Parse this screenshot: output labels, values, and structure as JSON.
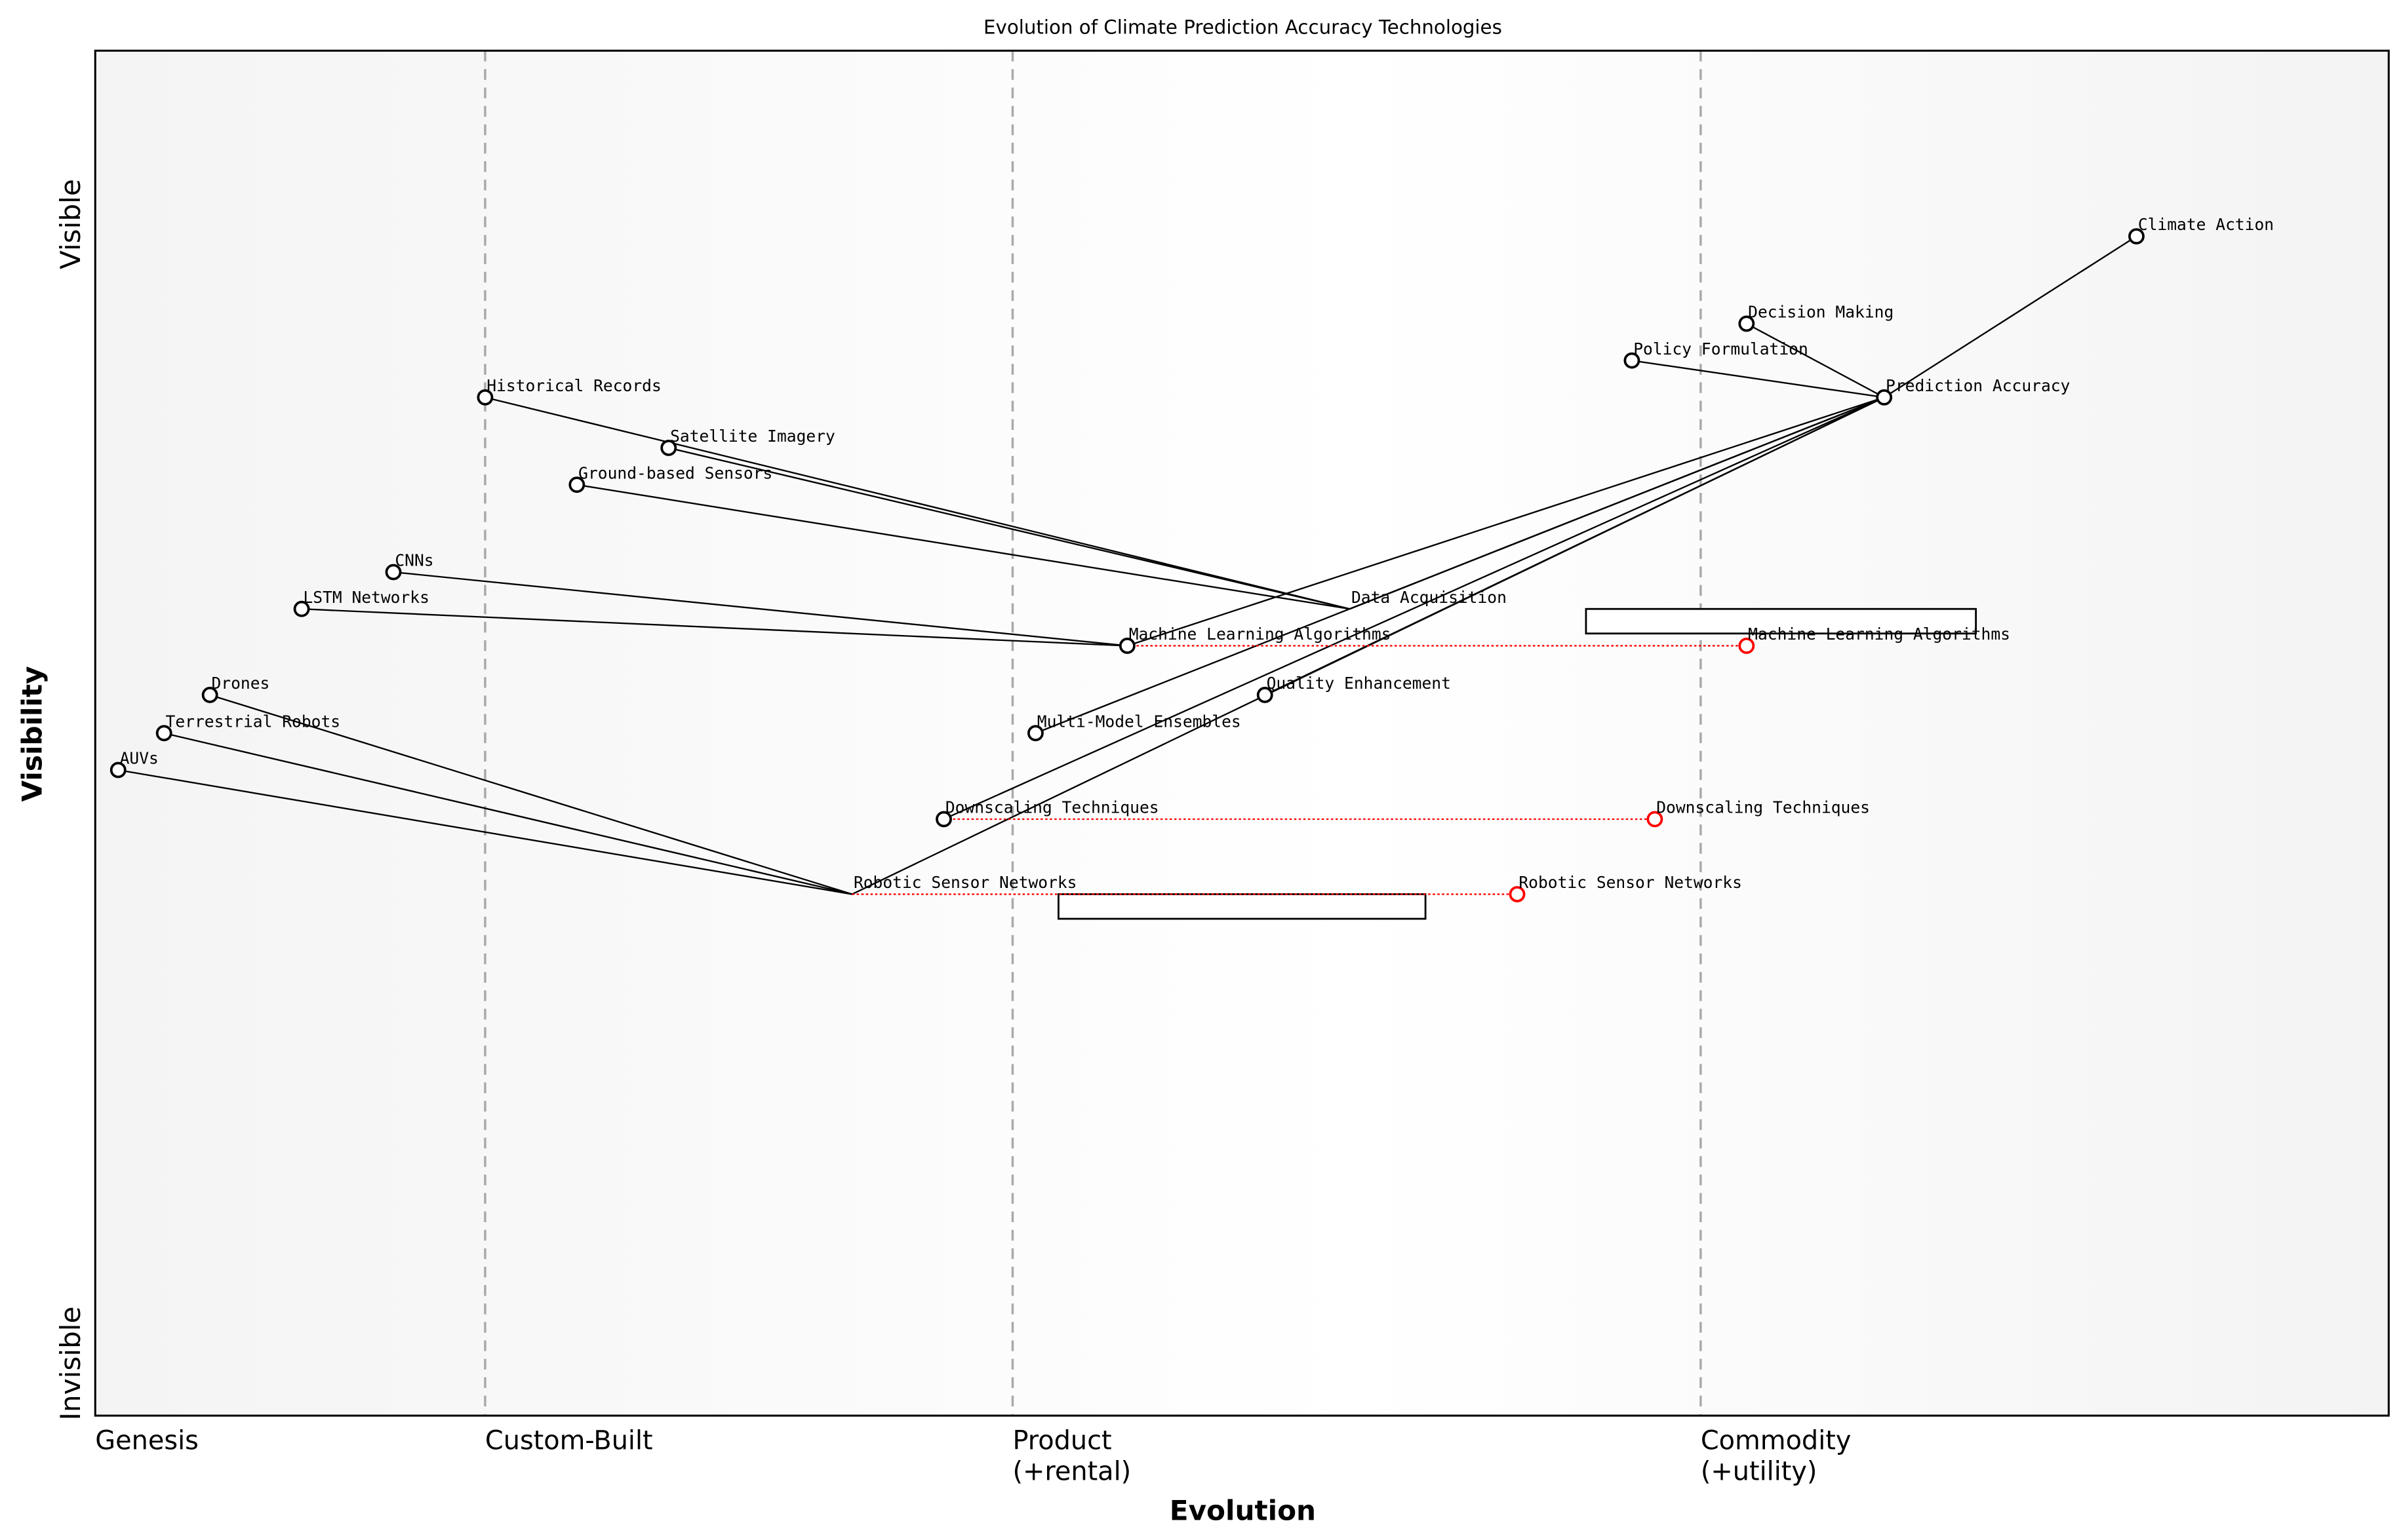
{
  "chart_data": {
    "type": "wardley-map",
    "title": "Evolution of Climate Prediction Accuracy Technologies",
    "xlabel": "Evolution",
    "ylabel": "Visibility",
    "x_stages": [
      "Genesis",
      "Custom-Built",
      "Product\n(+rental)",
      "Commodity\n(+utility)"
    ],
    "x_stage_positions": [
      0,
      0.17,
      0.4,
      0.7
    ],
    "y_labels": {
      "top": "Visible",
      "bottom": "Invisible"
    },
    "xlim": [
      0,
      1
    ],
    "ylim": [
      0,
      1
    ],
    "components": [
      {
        "name": "Climate Action",
        "evolution": 0.89,
        "visibility": 0.864
      },
      {
        "name": "Decision Making",
        "evolution": 0.72,
        "visibility": 0.8
      },
      {
        "name": "Policy Formulation",
        "evolution": 0.67,
        "visibility": 0.773
      },
      {
        "name": "Prediction Accuracy",
        "evolution": 0.78,
        "visibility": 0.746
      },
      {
        "name": "Historical Records",
        "evolution": 0.17,
        "visibility": 0.746
      },
      {
        "name": "Satellite Imagery",
        "evolution": 0.25,
        "visibility": 0.709
      },
      {
        "name": "Ground-based Sensors",
        "evolution": 0.21,
        "visibility": 0.682
      },
      {
        "name": "CNNs",
        "evolution": 0.13,
        "visibility": 0.618
      },
      {
        "name": "LSTM Networks",
        "evolution": 0.09,
        "visibility": 0.591
      },
      {
        "name": "Data Acquisition",
        "evolution": 0.547,
        "visibility": 0.591,
        "marker": false
      },
      {
        "name": "Machine Learning Algorithms",
        "evolution": 0.45,
        "visibility": 0.564
      },
      {
        "name": "Quality Enhancement",
        "evolution": 0.51,
        "visibility": 0.528
      },
      {
        "name": "Multi-Model Ensembles",
        "evolution": 0.41,
        "visibility": 0.5
      },
      {
        "name": "Drones",
        "evolution": 0.05,
        "visibility": 0.528
      },
      {
        "name": "Terrestrial Robots",
        "evolution": 0.03,
        "visibility": 0.5
      },
      {
        "name": "AUVs",
        "evolution": 0.01,
        "visibility": 0.473
      },
      {
        "name": "Downscaling Techniques",
        "evolution": 0.37,
        "visibility": 0.437
      },
      {
        "name": "Robotic Sensor Networks",
        "evolution": 0.33,
        "visibility": 0.382,
        "marker": false
      }
    ],
    "evolved": [
      {
        "name": "Machine Learning Algorithms",
        "from": 0.45,
        "to": 0.72,
        "visibility": 0.564
      },
      {
        "name": "Downscaling Techniques",
        "from": 0.37,
        "to": 0.68,
        "visibility": 0.437
      },
      {
        "name": "Robotic Sensor Networks",
        "from": 0.33,
        "to": 0.62,
        "visibility": 0.382
      }
    ],
    "pipelines": [
      {
        "start": 0.65,
        "end": 0.82,
        "visibility": 0.591
      },
      {
        "start": 0.42,
        "end": 0.58,
        "visibility": 0.382
      }
    ],
    "links": [
      [
        "Climate Action",
        "Prediction Accuracy"
      ],
      [
        "Decision Making",
        "Prediction Accuracy"
      ],
      [
        "Policy Formulation",
        "Prediction Accuracy"
      ],
      [
        "Prediction Accuracy",
        "Data Acquisition"
      ],
      [
        "Prediction Accuracy",
        "Machine Learning Algorithms"
      ],
      [
        "Prediction Accuracy",
        "Multi-Model Ensembles"
      ],
      [
        "Prediction Accuracy",
        "Downscaling Techniques"
      ],
      [
        "Prediction Accuracy",
        "Quality Enhancement"
      ],
      [
        "Prediction Accuracy",
        "Robotic Sensor Networks"
      ],
      [
        "Data Acquisition",
        "Historical Records"
      ],
      [
        "Data Acquisition",
        "Satellite Imagery"
      ],
      [
        "Data Acquisition",
        "Ground-based Sensors"
      ],
      [
        "Machine Learning Algorithms",
        "CNNs"
      ],
      [
        "Machine Learning Algorithms",
        "LSTM Networks"
      ],
      [
        "Robotic Sensor Networks",
        "Drones"
      ],
      [
        "Robotic Sensor Networks",
        "Terrestrial Robots"
      ],
      [
        "Robotic Sensor Networks",
        "AUVs"
      ]
    ],
    "colors": {
      "component": "#000000",
      "evolved": "#ff0000",
      "stage_line": "#aaaaaa"
    }
  }
}
